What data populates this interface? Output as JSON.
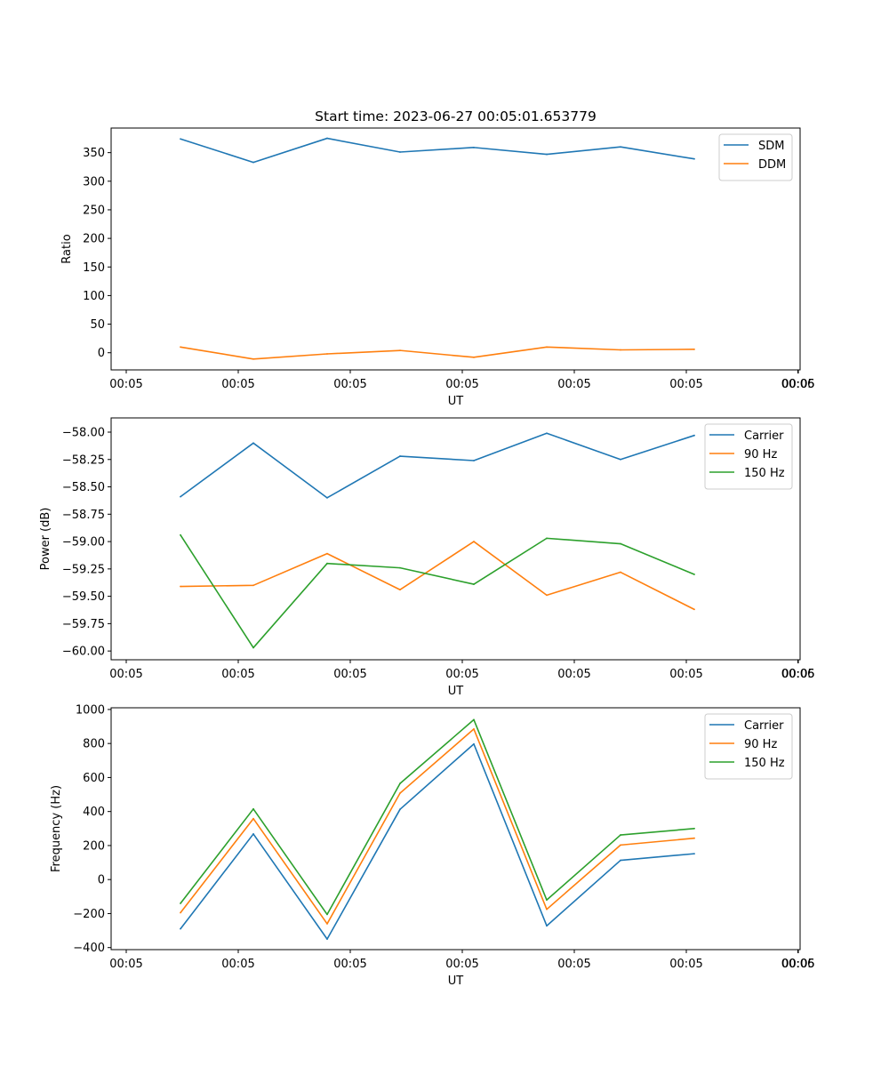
{
  "figure": {
    "title": "Start time: 2023-06-27 00:05:01.653779"
  },
  "colors": {
    "blue": "#1f77b4",
    "orange": "#ff7f0e",
    "green": "#2ca02c"
  },
  "chart_data": [
    {
      "type": "line",
      "title": "Start time: 2023-06-27 00:05:01.653779",
      "xlabel": "UT",
      "ylabel": "Ratio",
      "xticklabels": [
        "00:05",
        "00:05",
        "00:05",
        "00:05",
        "00:05",
        "00:05",
        "00:05",
        "00:06"
      ],
      "yticks": [
        0,
        50,
        100,
        150,
        200,
        250,
        300,
        350
      ],
      "yticklabels": [
        "0",
        "50",
        "100",
        "150",
        "200",
        "250",
        "300",
        "350"
      ],
      "ylim": [
        -30,
        393
      ],
      "legend": "top-right",
      "grid": false,
      "series": [
        {
          "name": "SDM",
          "color": "#1f77b4",
          "values": [
            374,
            333,
            375,
            351,
            359,
            347,
            360,
            339
          ]
        },
        {
          "name": "DDM",
          "color": "#ff7f0e",
          "values": [
            10,
            -11,
            -2,
            4,
            -8,
            10,
            5,
            6
          ]
        }
      ]
    },
    {
      "type": "line",
      "xlabel": "UT",
      "ylabel": "Power (dB)",
      "xticklabels": [
        "00:05",
        "00:05",
        "00:05",
        "00:05",
        "00:05",
        "00:05",
        "00:05",
        "00:06"
      ],
      "yticks": [
        -60.0,
        -59.75,
        -59.5,
        -59.25,
        -59.0,
        -58.75,
        -58.5,
        -58.25,
        -58.0
      ],
      "yticklabels": [
        "−60.00",
        "−59.75",
        "−59.50",
        "−59.25",
        "−59.00",
        "−58.75",
        "−58.50",
        "−58.25",
        "−58.00"
      ],
      "ylim": [
        -60.08,
        -57.87
      ],
      "legend": "top-right",
      "grid": false,
      "series": [
        {
          "name": "Carrier",
          "color": "#1f77b4",
          "values": [
            -58.59,
            -58.1,
            -58.6,
            -58.22,
            -58.26,
            -58.01,
            -58.25,
            -58.03
          ]
        },
        {
          "name": "90 Hz",
          "color": "#ff7f0e",
          "values": [
            -59.41,
            -59.4,
            -59.11,
            -59.44,
            -59.0,
            -59.49,
            -59.28,
            -59.62
          ]
        },
        {
          "name": "150 Hz",
          "color": "#2ca02c",
          "values": [
            -58.94,
            -59.97,
            -59.2,
            -59.24,
            -59.39,
            -58.97,
            -59.02,
            -59.3
          ]
        }
      ]
    },
    {
      "type": "line",
      "xlabel": "UT",
      "ylabel": "Frequency (Hz)",
      "xticklabels": [
        "00:05",
        "00:05",
        "00:05",
        "00:05",
        "00:05",
        "00:05",
        "00:05",
        "00:06"
      ],
      "yticks": [
        -400,
        -200,
        0,
        200,
        400,
        600,
        800,
        1000
      ],
      "yticklabels": [
        "−400",
        "−200",
        "0",
        "200",
        "400",
        "600",
        "800",
        "1000"
      ],
      "ylim": [
        -412,
        1010
      ],
      "legend": "top-right",
      "grid": false,
      "series": [
        {
          "name": "Carrier",
          "color": "#1f77b4",
          "values": [
            -290,
            268,
            -350,
            413,
            797,
            -272,
            113,
            152
          ]
        },
        {
          "name": "90 Hz",
          "color": "#ff7f0e",
          "values": [
            -195,
            358,
            -260,
            508,
            885,
            -175,
            203,
            243
          ]
        },
        {
          "name": "150 Hz",
          "color": "#2ca02c",
          "values": [
            -140,
            415,
            -205,
            565,
            940,
            -120,
            262,
            300
          ]
        }
      ]
    }
  ]
}
